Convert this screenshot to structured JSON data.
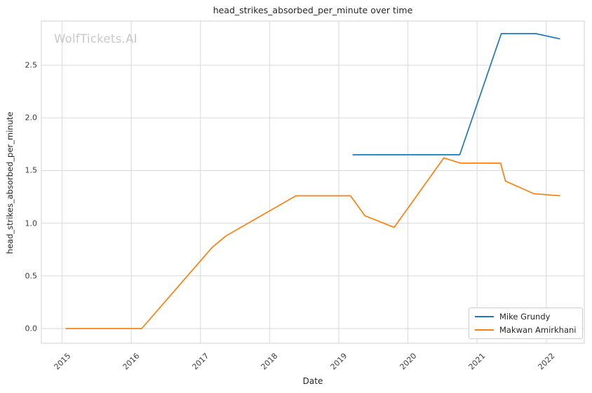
{
  "chart_data": {
    "type": "line",
    "title": "head_strikes_absorbed_per_minute over time",
    "xlabel": "Date",
    "ylabel": "head_strikes_absorbed_per_minute",
    "watermark": "WolfTickets.AI",
    "x_ticks": [
      2015,
      2016,
      2017,
      2018,
      2019,
      2020,
      2021,
      2022
    ],
    "y_ticks": [
      0.0,
      0.5,
      1.0,
      1.5,
      2.0,
      2.5
    ],
    "xlim": [
      2014.7,
      2022.55
    ],
    "ylim": [
      -0.14,
      2.92
    ],
    "grid": true,
    "legend_position": "lower right",
    "series": [
      {
        "name": "Mike Grundy",
        "color": "#1f77b4",
        "points": [
          [
            2019.2,
            1.65
          ],
          [
            2020.75,
            1.65
          ],
          [
            2021.35,
            2.8
          ],
          [
            2021.85,
            2.8
          ],
          [
            2022.2,
            2.75
          ]
        ]
      },
      {
        "name": "Makwan Amirkhani",
        "color": "#ff7f0e",
        "points": [
          [
            2015.05,
            0.0
          ],
          [
            2016.15,
            0.0
          ],
          [
            2017.17,
            0.77
          ],
          [
            2017.37,
            0.88
          ],
          [
            2018.38,
            1.26
          ],
          [
            2019.17,
            1.26
          ],
          [
            2019.38,
            1.07
          ],
          [
            2019.8,
            0.96
          ],
          [
            2020.52,
            1.62
          ],
          [
            2020.76,
            1.57
          ],
          [
            2021.34,
            1.57
          ],
          [
            2021.41,
            1.4
          ],
          [
            2021.82,
            1.28
          ],
          [
            2022.2,
            1.26
          ]
        ]
      }
    ]
  }
}
